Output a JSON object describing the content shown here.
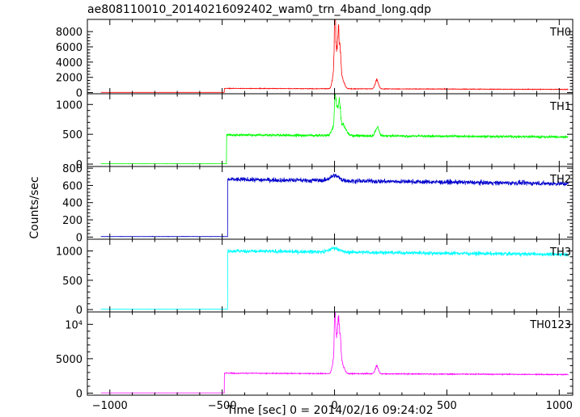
{
  "chart_data": {
    "type": "line",
    "title": "ae808110010_20140216092402_wam0_trn_4band_long.qdp",
    "xlabel": "Time [sec] 0 = 2014/02/16 09:24:02",
    "ylabel": "Counts/sec",
    "xlim": [
      -1100,
      1060
    ],
    "x_ticks": [
      -1000,
      -500,
      0,
      500,
      1000
    ],
    "x_tick_labels": [
      "−1000",
      "−500",
      "0",
      "500",
      "1000"
    ],
    "grid": false,
    "panels": [
      {
        "label": "TH0",
        "color": "#ff0000",
        "ylim": [
          -150,
          9600
        ],
        "y_ticks": [
          0,
          2000,
          4000,
          6000,
          8000
        ],
        "y_tick_labels": [
          "0",
          "2000",
          "4000",
          "6000",
          "8000"
        ],
        "x_start": -1040,
        "pre_level": 30,
        "jump_x": -490,
        "base_level": 550,
        "base_end": 420,
        "noise": 80,
        "peaks": [
          {
            "x": -5,
            "height": 1700,
            "width": 6
          },
          {
            "x": 2,
            "height": 8900,
            "width": 3
          },
          {
            "x": 10,
            "height": 4300,
            "width": 4
          },
          {
            "x": 17,
            "height": 5400,
            "width": 3
          },
          {
            "x": 24,
            "height": 4600,
            "width": 4
          },
          {
            "x": 32,
            "height": 1400,
            "width": 10
          },
          {
            "x": 188,
            "height": 1150,
            "width": 7
          }
        ]
      },
      {
        "label": "TH1",
        "color": "#00ff00",
        "ylim": [
          -40,
          1180
        ],
        "y_ticks": [
          0,
          500,
          1000
        ],
        "y_tick_labels": [
          "0",
          "500",
          "1000"
        ],
        "x_start": -1040,
        "pre_level": 5,
        "jump_x": -480,
        "base_level": 490,
        "base_end": 455,
        "noise": 40,
        "peaks": [
          {
            "x": -2,
            "height": 150,
            "width": 10
          },
          {
            "x": 3,
            "height": 640,
            "width": 3
          },
          {
            "x": 12,
            "height": 380,
            "width": 4
          },
          {
            "x": 22,
            "height": 430,
            "width": 4
          },
          {
            "x": 35,
            "height": 200,
            "width": 14
          },
          {
            "x": 190,
            "height": 140,
            "width": 8
          }
        ]
      },
      {
        "label": "TH2",
        "color": "#0000cc",
        "ylim": [
          -25,
          820
        ],
        "y_ticks": [
          0,
          200,
          400,
          600,
          800
        ],
        "y_tick_labels": [
          "0",
          "200",
          "400",
          "600",
          "800"
        ],
        "x_start": -1040,
        "pre_level": 5,
        "jump_x": -475,
        "base_level": 670,
        "base_end": 620,
        "noise": 50,
        "peaks": [
          {
            "x": 0,
            "height": 60,
            "width": 20
          }
        ]
      },
      {
        "label": "TH3",
        "color": "#00ffff",
        "ylim": [
          -40,
          1200
        ],
        "y_ticks": [
          0,
          500,
          1000
        ],
        "y_tick_labels": [
          "0",
          "500",
          "1000"
        ],
        "x_start": -1040,
        "pre_level": 5,
        "jump_x": -475,
        "base_level": 1000,
        "base_end": 940,
        "noise": 60,
        "peaks": [
          {
            "x": 0,
            "height": 70,
            "width": 20
          }
        ]
      },
      {
        "label": "TH0123",
        "color": "#ff00ff",
        "ylim": [
          -300,
          11800
        ],
        "y_ticks": [
          0,
          5000,
          10000
        ],
        "y_tick_labels": [
          "0",
          "5000",
          "10⁴"
        ],
        "x_start": -1040,
        "pre_level": 40,
        "jump_x": -490,
        "base_level": 2900,
        "base_end": 2700,
        "noise": 130,
        "peaks": [
          {
            "x": -5,
            "height": 1700,
            "width": 6
          },
          {
            "x": 2,
            "height": 8300,
            "width": 3
          },
          {
            "x": 10,
            "height": 4700,
            "width": 4
          },
          {
            "x": 17,
            "height": 5700,
            "width": 3
          },
          {
            "x": 24,
            "height": 4800,
            "width": 4
          },
          {
            "x": 32,
            "height": 1500,
            "width": 10
          },
          {
            "x": 188,
            "height": 1100,
            "width": 7
          }
        ]
      }
    ]
  }
}
